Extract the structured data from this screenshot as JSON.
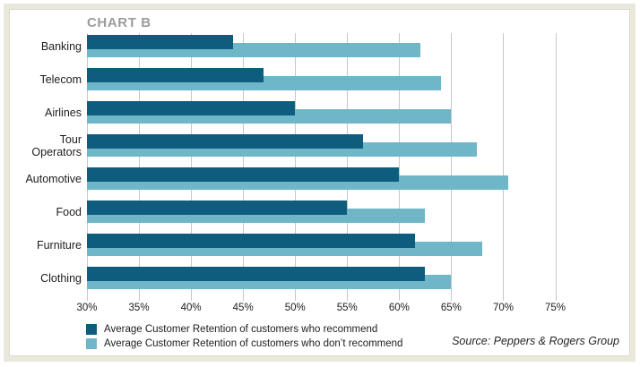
{
  "title": "CHART B",
  "source": "Source: Peppers & Rogers Group",
  "colors": {
    "recommend": "#0e5d7e",
    "dont_recommend": "#6fb6c9",
    "grid": "#c7c7c5",
    "title_text": "#9b9b9b",
    "frame": "#eae8da"
  },
  "chart_data": {
    "type": "bar",
    "orientation": "horizontal",
    "title": "CHART B",
    "categories": [
      "Banking",
      "Telecom",
      "Airlines",
      "Tour Operators",
      "Automotive",
      "Food",
      "Furniture",
      "Clothing"
    ],
    "series": [
      {
        "name": "Average Customer Retention of customers who recommend",
        "color": "#0e5d7e",
        "values": [
          44,
          47,
          50,
          56.5,
          60,
          55,
          61.5,
          62.5
        ]
      },
      {
        "name": "Average Customer Retention of customers who don’t recommend",
        "color": "#6fb6c9",
        "values": [
          62,
          64,
          65,
          67.5,
          70.5,
          62.5,
          68,
          65
        ]
      }
    ],
    "x_axis": {
      "min": 30,
      "max_tick": 75,
      "display_max": 81.5,
      "step": 5,
      "tick_labels": [
        "30%",
        "35%",
        "40%",
        "45%",
        "50%",
        "55%",
        "60%",
        "65%",
        "70%",
        "75%"
      ],
      "unit": "%"
    },
    "grid": true,
    "legend_position": "bottom-left",
    "source": "Source: Peppers & Rogers Group"
  }
}
